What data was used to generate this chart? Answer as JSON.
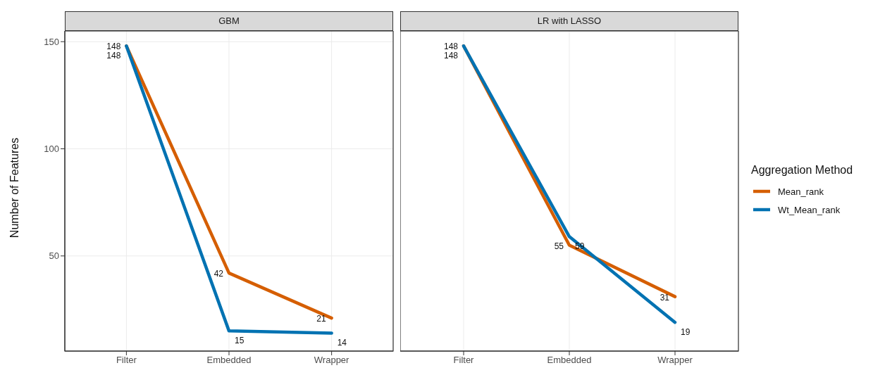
{
  "chart_data": [
    {
      "type": "line",
      "title": "GBM",
      "ylabel": "Number of Features",
      "categories": [
        "Filter",
        "Embedded",
        "Wrapper"
      ],
      "series": [
        {
          "name": "Mean_rank",
          "color": "#d55e00",
          "values": [
            148,
            42,
            21
          ]
        },
        {
          "name": "Wt_Mean_rank",
          "color": "#0072b2",
          "values": [
            148,
            15,
            14
          ]
        }
      ],
      "ylim": [
        5.6,
        155
      ],
      "yticks": [
        50,
        100,
        150
      ],
      "grid": true,
      "legend": "right",
      "legend_title": "Aggregation Method",
      "marker": "none",
      "line_style": "solid",
      "data_labels": true
    },
    {
      "type": "line",
      "title": "LR with LASSO",
      "categories": [
        "Filter",
        "Embedded",
        "Wrapper"
      ],
      "series": [
        {
          "color": "#d55e00",
          "values": [
            148,
            55,
            31
          ]
        },
        {
          "color": "#0072b2",
          "values": [
            148,
            59,
            19
          ]
        }
      ],
      "ylim": [
        5.6,
        155
      ],
      "yticks": [
        50,
        100,
        150
      ],
      "grid": true,
      "marker": "none",
      "line_style": "solid",
      "data_labels": true,
      "tick_labels": "x"
    }
  ]
}
